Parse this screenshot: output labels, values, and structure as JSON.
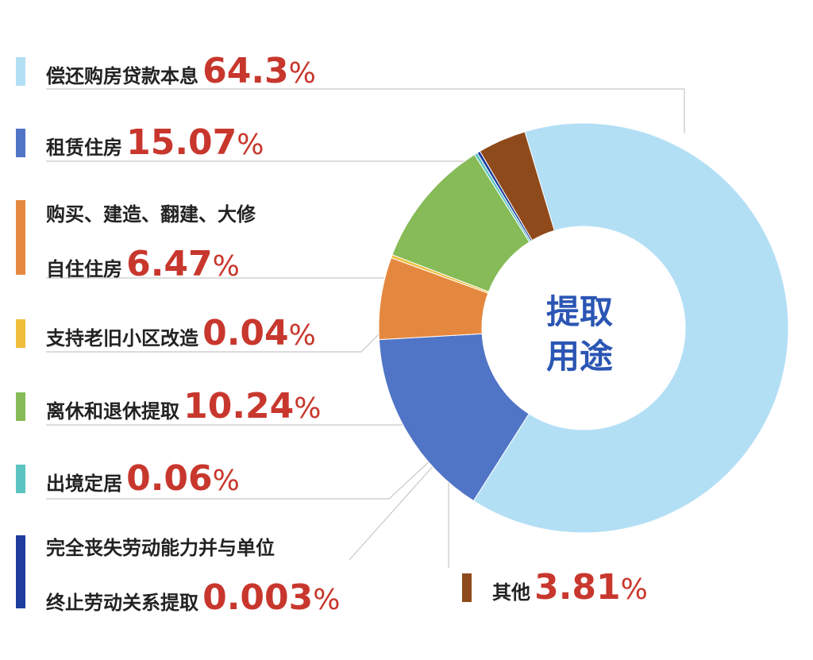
{
  "chart_data": {
    "type": "pie",
    "title": "提取用途",
    "title_lines": [
      "提取",
      "用途"
    ],
    "unit": "%",
    "slices": [
      {
        "label": "偿还购房贷款本息",
        "value": 64.3,
        "display": "64.3",
        "color": "#b3dff5"
      },
      {
        "label": "租赁住房",
        "value": 15.07,
        "display": "15.07",
        "color": "#5075c6"
      },
      {
        "label_lines": [
          "购买、建造、翻建、大修",
          "自住住房"
        ],
        "value": 6.47,
        "display": "6.47",
        "color": "#e5883f"
      },
      {
        "label": "支持老旧小区改造",
        "value": 0.04,
        "display": "0.04",
        "color": "#f0be3b"
      },
      {
        "label": "离休和退休提取",
        "value": 10.24,
        "display": "10.24",
        "color": "#86bb57"
      },
      {
        "label": "出境定居",
        "value": 0.06,
        "display": "0.06",
        "color": "#5cc4c0"
      },
      {
        "label_lines": [
          "完全丧失劳动能力并与单位",
          "终止劳动关系提取"
        ],
        "value": 0.003,
        "display": "0.003",
        "color": "#1d3c9e"
      },
      {
        "label": "其他",
        "value": 3.81,
        "display": "3.81",
        "color": "#8f4a1b"
      }
    ]
  }
}
